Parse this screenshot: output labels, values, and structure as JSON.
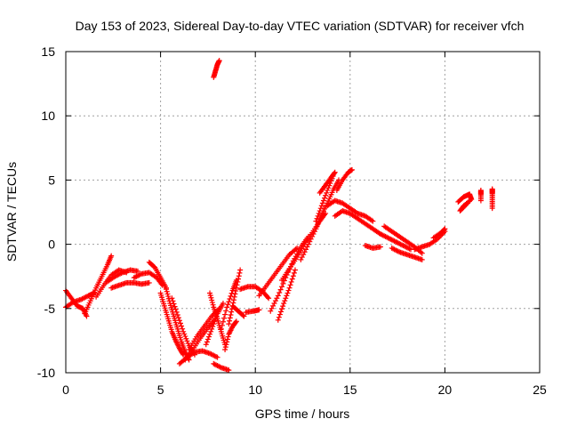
{
  "chart_data": {
    "type": "scatter",
    "title": "Day 153 of 2023, Sidereal Day-to-day VTEC variation (SDTVAR) for receiver vfch",
    "xlabel": "GPS time / hours",
    "ylabel": "SDTVAR / TECUs",
    "xlim": [
      0,
      25
    ],
    "ylim": [
      -10,
      15
    ],
    "xticks": [
      0,
      5,
      10,
      15,
      20,
      25
    ],
    "yticks": [
      -10,
      -5,
      0,
      5,
      10,
      15
    ],
    "xtick_labels": [
      "0",
      "5",
      "10",
      "15",
      "20",
      "25"
    ],
    "ytick_labels": [
      "-10",
      "-5",
      "0",
      "5",
      "10",
      "15"
    ],
    "grid": true,
    "marker": "+",
    "color": "#ff0000",
    "series": [
      {
        "name": "SDTVAR",
        "tracks": [
          [
            [
              0.0,
              -3.6
            ],
            [
              0.3,
              -4.2
            ],
            [
              0.6,
              -4.8
            ],
            [
              0.9,
              -5.0
            ],
            [
              1.1,
              -5.6
            ]
          ],
          [
            [
              0.0,
              -4.9
            ],
            [
              0.4,
              -4.5
            ],
            [
              0.8,
              -4.3
            ],
            [
              1.2,
              -4.0
            ],
            [
              1.5,
              -3.8
            ]
          ],
          [
            [
              1.0,
              -5.4
            ],
            [
              1.3,
              -4.4
            ],
            [
              1.6,
              -3.4
            ],
            [
              1.9,
              -2.5
            ],
            [
              2.2,
              -1.6
            ],
            [
              2.4,
              -0.9
            ]
          ],
          [
            [
              1.6,
              -4.1
            ],
            [
              2.0,
              -3.2
            ],
            [
              2.4,
              -2.4
            ],
            [
              2.8,
              -2.0
            ],
            [
              3.2,
              -2.2
            ]
          ],
          [
            [
              2.2,
              -2.9
            ],
            [
              2.6,
              -2.5
            ],
            [
              3.0,
              -2.2
            ],
            [
              3.4,
              -2.0
            ],
            [
              3.8,
              -2.1
            ]
          ],
          [
            [
              2.4,
              -3.4
            ],
            [
              2.8,
              -3.2
            ],
            [
              3.2,
              -3.0
            ],
            [
              3.6,
              -3.0
            ],
            [
              4.0,
              -3.1
            ],
            [
              4.4,
              -3.0
            ]
          ],
          [
            [
              3.6,
              -2.6
            ],
            [
              4.0,
              -2.3
            ],
            [
              4.4,
              -2.2
            ],
            [
              4.8,
              -2.6
            ],
            [
              5.1,
              -3.2
            ]
          ],
          [
            [
              4.4,
              -1.4
            ],
            [
              4.7,
              -1.8
            ],
            [
              5.0,
              -2.6
            ],
            [
              5.3,
              -3.4
            ]
          ],
          [
            [
              5.0,
              -3.8
            ],
            [
              5.2,
              -4.8
            ],
            [
              5.4,
              -5.8
            ],
            [
              5.6,
              -6.8
            ],
            [
              5.8,
              -7.5
            ],
            [
              6.0,
              -8.1
            ],
            [
              6.2,
              -8.6
            ]
          ],
          [
            [
              5.3,
              -3.5
            ],
            [
              5.5,
              -4.6
            ],
            [
              5.7,
              -5.6
            ],
            [
              5.9,
              -6.6
            ],
            [
              6.1,
              -7.6
            ],
            [
              6.3,
              -8.4
            ],
            [
              6.5,
              -9.0
            ]
          ],
          [
            [
              5.6,
              -4.2
            ],
            [
              5.9,
              -5.5
            ],
            [
              6.2,
              -6.8
            ],
            [
              6.5,
              -7.9
            ],
            [
              6.8,
              -8.6
            ]
          ],
          [
            [
              6.0,
              -9.3
            ],
            [
              6.4,
              -8.8
            ],
            [
              6.8,
              -8.4
            ],
            [
              7.2,
              -8.3
            ],
            [
              7.6,
              -8.5
            ],
            [
              8.0,
              -8.8
            ]
          ],
          [
            [
              6.5,
              -8.2
            ],
            [
              6.9,
              -7.2
            ],
            [
              7.3,
              -6.4
            ],
            [
              7.7,
              -5.6
            ],
            [
              8.1,
              -5.0
            ]
          ],
          [
            [
              6.3,
              -9.0
            ],
            [
              6.7,
              -8.2
            ],
            [
              7.1,
              -7.3
            ],
            [
              7.5,
              -6.5
            ],
            [
              7.9,
              -5.8
            ]
          ],
          [
            [
              7.4,
              -7.8
            ],
            [
              7.7,
              -6.6
            ],
            [
              8.0,
              -5.4
            ],
            [
              8.3,
              -4.6
            ]
          ],
          [
            [
              7.6,
              -3.8
            ],
            [
              7.8,
              -4.9
            ],
            [
              8.0,
              -5.8
            ],
            [
              8.2,
              -6.8
            ],
            [
              8.4,
              -7.8
            ]
          ],
          [
            [
              8.2,
              -6.6
            ],
            [
              8.5,
              -4.9
            ],
            [
              8.8,
              -3.6
            ],
            [
              9.0,
              -2.8
            ]
          ],
          [
            [
              8.6,
              -6.2
            ],
            [
              8.8,
              -4.8
            ],
            [
              9.0,
              -3.4
            ],
            [
              9.2,
              -2.0
            ]
          ],
          [
            [
              8.4,
              -8.2
            ],
            [
              8.6,
              -7.0
            ],
            [
              8.8,
              -6.4
            ],
            [
              9.0,
              -6.0
            ]
          ],
          [
            [
              7.8,
              -9.3
            ],
            [
              8.2,
              -9.6
            ],
            [
              8.6,
              -9.8
            ]
          ],
          [
            [
              8.8,
              -4.8
            ],
            [
              9.1,
              -5.2
            ],
            [
              9.4,
              -5.6
            ]
          ],
          [
            [
              9.5,
              -5.3
            ],
            [
              9.9,
              -5.2
            ],
            [
              10.2,
              -5.1
            ]
          ],
          [
            [
              9.2,
              -3.5
            ],
            [
              9.6,
              -3.3
            ],
            [
              10.0,
              -3.3
            ],
            [
              10.4,
              -3.7
            ],
            [
              10.7,
              -4.2
            ]
          ],
          [
            [
              10.2,
              -4.0
            ],
            [
              10.6,
              -3.2
            ],
            [
              11.0,
              -2.4
            ],
            [
              11.4,
              -1.6
            ],
            [
              11.8,
              -0.8
            ],
            [
              12.2,
              -0.3
            ]
          ],
          [
            [
              10.8,
              -5.2
            ],
            [
              11.2,
              -4.0
            ],
            [
              11.6,
              -2.6
            ],
            [
              12.0,
              -1.3
            ],
            [
              12.4,
              -0.2
            ],
            [
              12.8,
              0.6
            ]
          ],
          [
            [
              11.2,
              -5.9
            ],
            [
              11.5,
              -4.6
            ],
            [
              11.8,
              -3.4
            ],
            [
              12.1,
              -2.0
            ]
          ],
          [
            [
              11.4,
              -2.8
            ],
            [
              11.8,
              -1.9
            ],
            [
              12.2,
              -1.0
            ],
            [
              12.6,
              0.0
            ],
            [
              13.0,
              0.9
            ],
            [
              13.4,
              1.8
            ],
            [
              13.7,
              2.4
            ]
          ],
          [
            [
              12.4,
              -1.2
            ],
            [
              12.8,
              0.0
            ],
            [
              13.2,
              1.2
            ],
            [
              13.5,
              2.3
            ],
            [
              13.8,
              3.2
            ],
            [
              14.1,
              4.2
            ],
            [
              14.4,
              5.0
            ]
          ],
          [
            [
              13.2,
              1.8
            ],
            [
              13.5,
              3.0
            ],
            [
              13.8,
              4.2
            ],
            [
              14.1,
              5.3
            ]
          ],
          [
            [
              13.4,
              4.0
            ],
            [
              13.7,
              4.6
            ],
            [
              14.0,
              5.2
            ],
            [
              14.2,
              5.6
            ]
          ],
          [
            [
              14.3,
              4.2
            ],
            [
              14.6,
              5.0
            ],
            [
              14.9,
              5.6
            ],
            [
              15.1,
              5.8
            ]
          ],
          [
            [
              13.8,
              3.0
            ],
            [
              14.2,
              3.4
            ],
            [
              14.6,
              3.2
            ],
            [
              15.0,
              2.8
            ],
            [
              15.4,
              2.4
            ],
            [
              15.8,
              2.2
            ],
            [
              16.2,
              1.8
            ]
          ],
          [
            [
              14.2,
              2.2
            ],
            [
              14.6,
              2.6
            ],
            [
              15.0,
              2.4
            ],
            [
              15.4,
              2.0
            ],
            [
              15.8,
              1.6
            ],
            [
              16.2,
              1.2
            ],
            [
              16.6,
              0.8
            ]
          ],
          [
            [
              15.8,
              -0.1
            ],
            [
              16.2,
              -0.3
            ],
            [
              16.6,
              -0.2
            ]
          ],
          [
            [
              16.6,
              0.8
            ],
            [
              17.0,
              0.5
            ],
            [
              17.4,
              0.2
            ],
            [
              17.8,
              -0.1
            ],
            [
              18.2,
              -0.4
            ]
          ],
          [
            [
              16.8,
              1.4
            ],
            [
              17.2,
              1.0
            ],
            [
              17.6,
              0.6
            ],
            [
              18.0,
              0.2
            ],
            [
              18.4,
              -0.2
            ],
            [
              18.8,
              -0.7
            ]
          ],
          [
            [
              17.2,
              -0.3
            ],
            [
              17.6,
              -0.6
            ],
            [
              18.0,
              -0.8
            ],
            [
              18.4,
              -1.0
            ],
            [
              18.8,
              -1.2
            ]
          ],
          [
            [
              18.4,
              -0.4
            ],
            [
              18.8,
              -0.2
            ],
            [
              19.2,
              0.0
            ],
            [
              19.6,
              0.4
            ],
            [
              20.0,
              1.0
            ]
          ],
          [
            [
              19.4,
              0.5
            ],
            [
              19.8,
              0.9
            ],
            [
              20.0,
              1.2
            ]
          ],
          [
            [
              20.7,
              3.3
            ],
            [
              21.0,
              3.7
            ],
            [
              21.3,
              3.9
            ],
            [
              21.4,
              3.5
            ],
            [
              21.0,
              3.0
            ],
            [
              20.8,
              2.6
            ],
            [
              21.2,
              3.2
            ]
          ],
          [
            [
              21.9,
              3.9
            ],
            [
              21.9,
              4.2
            ],
            [
              21.9,
              3.4
            ]
          ],
          [
            [
              22.5,
              4.0
            ],
            [
              22.5,
              4.3
            ],
            [
              22.5,
              3.6
            ],
            [
              22.5,
              2.8
            ]
          ],
          [
            [
              7.8,
              13.0
            ],
            [
              7.9,
              13.5
            ],
            [
              8.0,
              14.0
            ],
            [
              8.1,
              14.3
            ]
          ]
        ]
      }
    ]
  }
}
